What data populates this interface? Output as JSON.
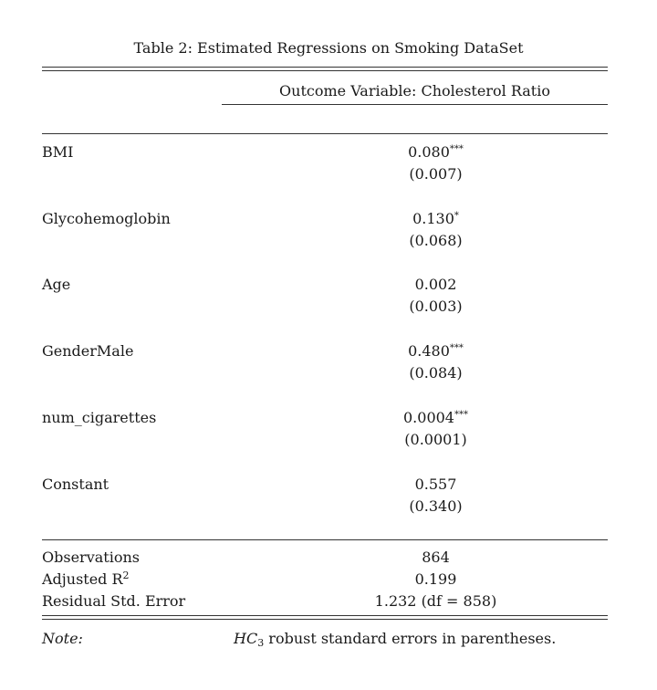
{
  "caption": "Table 2: Estimated Regressions on Smoking DataSet",
  "header": "Outcome Variable: Cholesterol Ratio",
  "coefficients": [
    {
      "label": "BMI",
      "estimate": "0.080",
      "stars": "***",
      "se": "(0.007)"
    },
    {
      "label": "Glycohemoglobin",
      "estimate": "0.130",
      "stars": "*",
      "se": "(0.068)"
    },
    {
      "label": "Age",
      "estimate": "0.002",
      "stars": "",
      "se": "(0.003)"
    },
    {
      "label": "GenderMale",
      "estimate": "0.480",
      "stars": "***",
      "se": "(0.084)"
    },
    {
      "label": "num_cigarettes",
      "estimate": "0.0004",
      "stars": "***",
      "se": "(0.0001)"
    },
    {
      "label": "Constant",
      "estimate": "0.557",
      "stars": "",
      "se": "(0.340)"
    }
  ],
  "stats": {
    "observations": {
      "label": "Observations",
      "value": "864"
    },
    "adj_r2": {
      "label": "Adjusted R",
      "sup": "2",
      "value": "0.199"
    },
    "rse": {
      "label": "Residual Std. Error",
      "value": "1.232 (df = 858)"
    }
  },
  "note": {
    "label": "Note:",
    "hc_letters": "HC",
    "hc_sub": "3",
    "text": " robust standard errors in parentheses."
  }
}
